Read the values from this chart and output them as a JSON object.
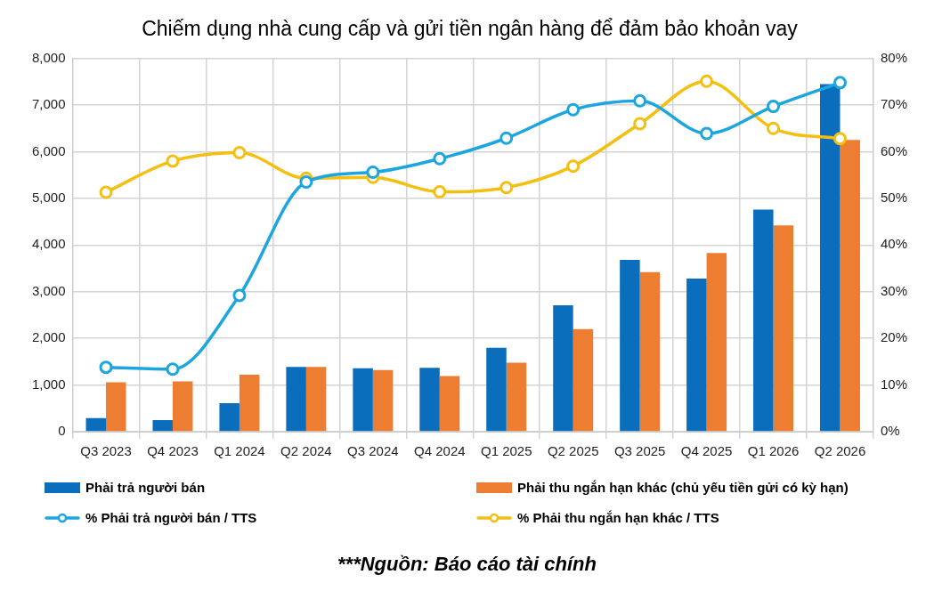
{
  "chart_data": {
    "type": "bar",
    "title": "Chiếm dụng nhà cung cấp và gửi tiền ngân hàng để đảm bảo khoản vay",
    "categories": [
      "Q3 2023",
      "Q4 2023",
      "Q1 2024",
      "Q2 2024",
      "Q3 2024",
      "Q4 2024",
      "Q1 2025",
      "Q2 2025",
      "Q3 2025",
      "Q4 2025",
      "Q1 2026",
      "Q2 2026"
    ],
    "series": [
      {
        "name": "Phải trả người bán",
        "color": "#0a6ebd",
        "values": [
          290,
          250,
          610,
          1390,
          1360,
          1370,
          1800,
          2710,
          3680,
          3280,
          4760,
          7450
        ]
      },
      {
        "name": "Phải thu ngắn hạn khác (chủ yếu tiền gửi có kỳ hạn)",
        "color": "#ed7d31",
        "values": [
          1060,
          1080,
          1220,
          1390,
          1320,
          1190,
          1480,
          2200,
          3420,
          3830,
          4420,
          6250
        ]
      },
      {
        "name": "% Phải trả người bán / TTS",
        "type": "line",
        "axis": "y2",
        "color": "#1ba6e0",
        "values": [
          13.8,
          13.4,
          29.2,
          53.5,
          55.6,
          58.5,
          62.9,
          69.0,
          70.9,
          63.9,
          69.7,
          74.8
        ]
      },
      {
        "name": "% Phải thu ngắn hạn khác / TTS",
        "type": "line",
        "axis": "y2",
        "color": "#f5bf10",
        "values": [
          51.3,
          58,
          59.8,
          54.3,
          54.5,
          51.4,
          52.3,
          56.9,
          66.0,
          75.1,
          65.0,
          62.8
        ]
      }
    ],
    "ylim": [
      0,
      8000
    ],
    "yticks": [
      0,
      {
        "value": 1000,
        "label": "1,000"
      },
      {
        "value": 2000,
        "label": "2,000"
      },
      {
        "value": 3000,
        "label": "3,000"
      },
      {
        "value": 4000,
        "label": "4,000"
      },
      {
        "value": 5000,
        "label": "5,000"
      },
      {
        "value": 6000,
        "label": "6,000"
      },
      {
        "value": 7000,
        "label": "7,000"
      },
      {
        "value": 8000,
        "label": "8,000"
      }
    ],
    "y2lim": [
      0,
      80
    ],
    "y2ticks": [
      {
        "value": 0,
        "label": "0%"
      },
      {
        "value": 10,
        "label": "10%"
      },
      {
        "value": 20,
        "label": "20%"
      },
      {
        "value": 30,
        "label": "30%"
      },
      {
        "value": 40,
        "label": "40%"
      },
      {
        "value": 50,
        "label": "50%"
      },
      {
        "value": 60,
        "label": "60%"
      },
      {
        "value": 70,
        "label": "70%"
      },
      {
        "value": 80,
        "label": "80%"
      }
    ],
    "grid": true,
    "legend": "bottom",
    "marker": "circle",
    "annotations": [
      "***Nguồn: Báo cáo tài chính"
    ]
  }
}
